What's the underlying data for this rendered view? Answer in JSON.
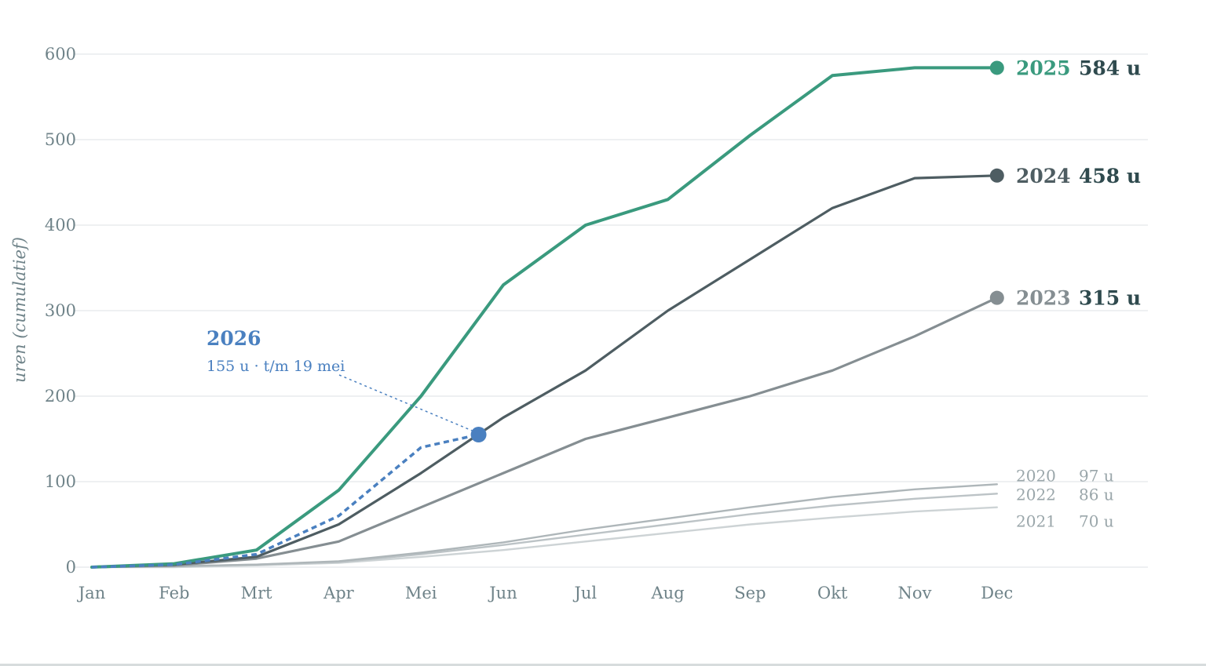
{
  "chart_data": {
    "type": "line",
    "ylabel": "uren (cumulatief)",
    "ylim": [
      0,
      600
    ],
    "yticks": [
      0,
      100,
      200,
      300,
      400,
      500,
      600
    ],
    "ytick_labels": [
      "0",
      "100",
      "200",
      "300",
      "400",
      "500",
      "600"
    ],
    "categories": [
      "Jan",
      "Feb",
      "Mrt",
      "Apr",
      "Mei",
      "Jun",
      "Jul",
      "Aug",
      "Sep",
      "Okt",
      "Nov",
      "Dec"
    ],
    "grid": true,
    "series": [
      {
        "name": "2021",
        "color": "#cdd3d5",
        "emphasis": "minor",
        "end_label": "70 u",
        "values": [
          0,
          0,
          2,
          5,
          12,
          20,
          30,
          40,
          50,
          58,
          65,
          70
        ]
      },
      {
        "name": "2022",
        "color": "#bcc3c6",
        "emphasis": "minor",
        "end_label": "86 u",
        "values": [
          0,
          1,
          3,
          6,
          15,
          26,
          38,
          50,
          62,
          72,
          80,
          86
        ]
      },
      {
        "name": "2020",
        "color": "#aeb6b9",
        "emphasis": "minor",
        "end_label": "97 u",
        "values": [
          0,
          1,
          3,
          7,
          17,
          29,
          44,
          57,
          70,
          82,
          91,
          97
        ]
      },
      {
        "name": "2023",
        "color": "#858e92",
        "emphasis": "major",
        "end_label": "315 u",
        "values": [
          0,
          2,
          10,
          30,
          70,
          110,
          150,
          175,
          200,
          230,
          270,
          315
        ]
      },
      {
        "name": "2024",
        "color": "#4e5d62",
        "emphasis": "major",
        "end_label": "458 u",
        "values": [
          0,
          3,
          12,
          50,
          110,
          175,
          230,
          300,
          360,
          420,
          455,
          458
        ]
      },
      {
        "name": "2025",
        "color": "#3a9a7e",
        "emphasis": "major",
        "end_label": "584 u",
        "values": [
          0,
          4,
          20,
          90,
          200,
          330,
          400,
          430,
          505,
          575,
          584,
          584
        ]
      }
    ],
    "current": {
      "name": "2026",
      "color": "#4a80c0",
      "style": "dashed",
      "x": [
        0,
        1,
        2,
        3,
        4,
        4.7
      ],
      "values": [
        0,
        3,
        15,
        60,
        140,
        155
      ],
      "annotation_title": "2026",
      "annotation_text": "155 u · t/m 19 mei"
    }
  }
}
